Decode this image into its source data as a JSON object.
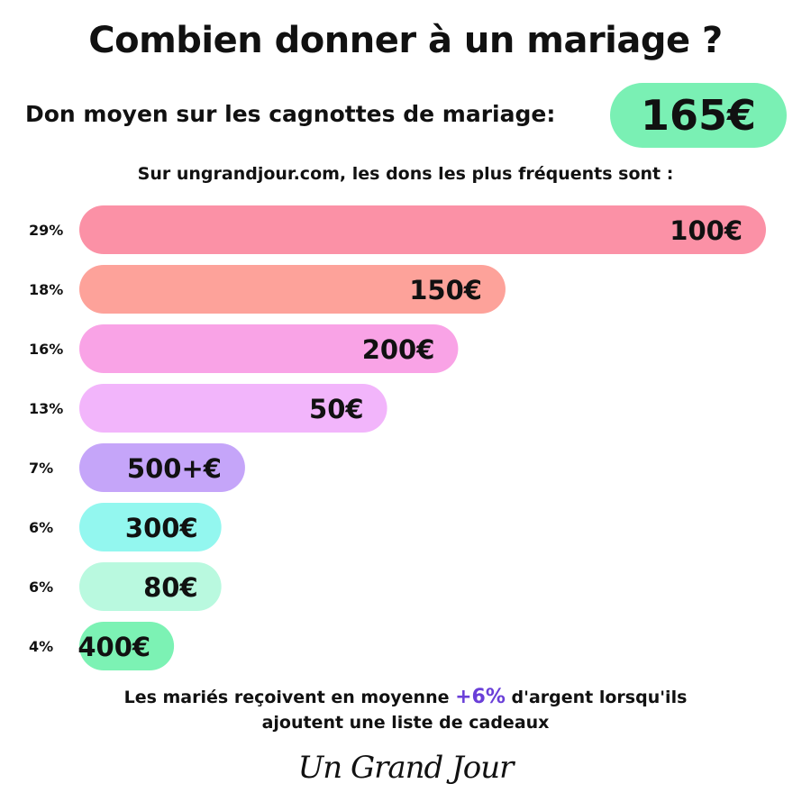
{
  "header": {
    "title": "Combien donner à un mariage ?",
    "average_label": "Don moyen sur les cagnottes de mariage:",
    "average_value": "165€",
    "average_color": "#7af0b4"
  },
  "intro": "Sur ungrandjour.com, les dons les plus fréquents sont :",
  "chart_data": {
    "type": "bar",
    "orientation": "horizontal",
    "categories": [
      "100€",
      "150€",
      "200€",
      "50€",
      "500+€",
      "300€",
      "80€",
      "400€"
    ],
    "values": [
      29,
      18,
      16,
      13,
      7,
      6,
      6,
      4
    ],
    "value_labels": [
      "29%",
      "18%",
      "16%",
      "13%",
      "7%",
      "6%",
      "6%",
      "4%"
    ],
    "colors": [
      "#fb91a6",
      "#fda29a",
      "#f9a3e6",
      "#f2b5fb",
      "#c5a5f9",
      "#93f7ef",
      "#b9f9df",
      "#7cf2b4"
    ]
  },
  "footnote": {
    "before": "Les mariés reçoivent en moyenne",
    "highlight": "+6%",
    "after": "d'argent lorsqu'ils",
    "line2": "ajoutent une liste de cadeaux"
  },
  "logo": "Un Grand Jour"
}
